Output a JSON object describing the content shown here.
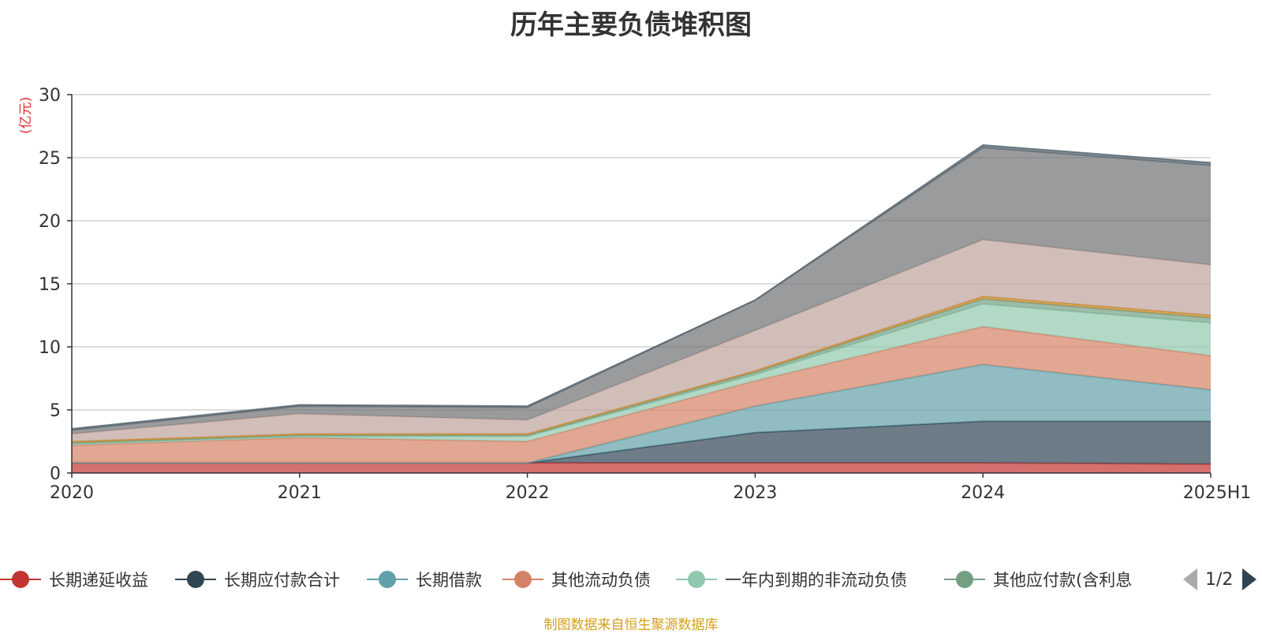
{
  "chart_data": {
    "type": "area",
    "stacked": true,
    "title": "历年主要负债堆积图",
    "unit_label": "(亿元)",
    "categories": [
      "2020",
      "2021",
      "2022",
      "2023",
      "2024",
      "2025H1"
    ],
    "y_ticks": [
      "0",
      "5",
      "10",
      "15",
      "20",
      "25",
      "30"
    ],
    "ylim": [
      0,
      30
    ],
    "grid": true,
    "series": [
      {
        "name": "长期递延收益",
        "color": "#c23531",
        "values": [
          0.8,
          0.8,
          0.8,
          0.8,
          0.8,
          0.7
        ]
      },
      {
        "name": "长期应付款合计",
        "color": "#2f4554",
        "values": [
          0.0,
          0.0,
          0.0,
          2.4,
          3.3,
          3.4
        ]
      },
      {
        "name": "长期借款",
        "color": "#61a0a8",
        "values": [
          0.0,
          0.0,
          0.0,
          2.1,
          4.5,
          2.5
        ]
      },
      {
        "name": "其他流动负债",
        "color": "#d48265",
        "values": [
          1.4,
          2.0,
          1.7,
          2.0,
          3.0,
          2.7
        ]
      },
      {
        "name": "一年内到期的非流动负债",
        "color": "#91c7ae",
        "values": [
          0.1,
          0.1,
          0.4,
          0.5,
          1.8,
          2.6
        ]
      },
      {
        "name": "其他应付款(含利息",
        "color": "#749f83",
        "values": [
          0.1,
          0.1,
          0.1,
          0.2,
          0.4,
          0.4
        ]
      },
      {
        "name": "",
        "color": "#ca8622",
        "values": [
          0.1,
          0.1,
          0.1,
          0.1,
          0.2,
          0.2
        ]
      },
      {
        "name": "",
        "color": "#bda29a",
        "values": [
          0.6,
          1.6,
          1.1,
          3.2,
          4.5,
          4.0
        ]
      },
      {
        "name": "",
        "color": "#6e7074",
        "values": [
          0.3,
          0.6,
          1.0,
          2.4,
          7.3,
          7.9
        ]
      },
      {
        "name": "",
        "color": "#546570",
        "values": [
          0.1,
          0.1,
          0.1,
          0.0,
          0.2,
          0.2
        ]
      }
    ]
  },
  "legend": {
    "page": "1/2",
    "prev_icon": "triangle-left-icon",
    "next_icon": "triangle-right-icon"
  },
  "source_note": "制图数据来自恒生聚源数据库"
}
